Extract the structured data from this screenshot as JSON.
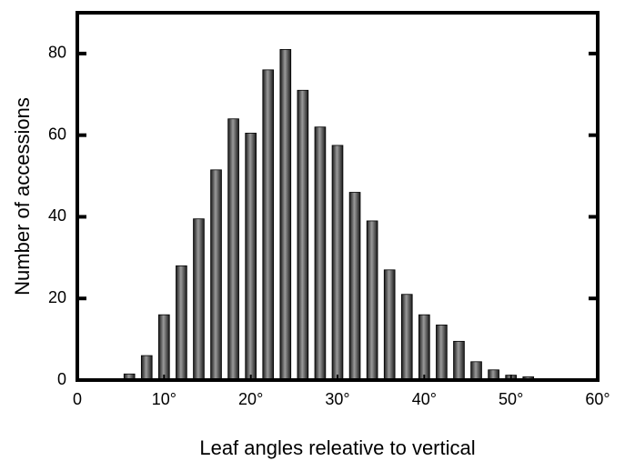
{
  "chart_data": {
    "type": "bar",
    "x": [
      6,
      8,
      10,
      12,
      14,
      16,
      18,
      20,
      22,
      24,
      26,
      28,
      30,
      32,
      34,
      36,
      38,
      40,
      42,
      44,
      46,
      48,
      50,
      52
    ],
    "values": [
      1.5,
      6,
      16,
      28,
      39.5,
      51.5,
      64,
      60.5,
      76,
      81,
      71,
      62,
      57.5,
      46,
      39,
      27,
      21,
      16,
      13.5,
      9.5,
      4.5,
      2.5,
      1.2,
      0.8
    ],
    "color": "#9a9a9a",
    "xlabel": "Leaf angles releative to vertical",
    "ylabel": "Number of accessions",
    "xlim": [
      0,
      60
    ],
    "xticks": [
      0,
      {
        "value": 10,
        "label": "10°"
      },
      {
        "value": 20,
        "label": "20°"
      },
      {
        "value": 30,
        "label": "30°"
      },
      {
        "value": 40,
        "label": "40°"
      },
      {
        "value": 50,
        "label": "50°"
      },
      {
        "value": 60,
        "label": "60°"
      }
    ],
    "ylim": [
      0,
      90
    ],
    "yticks": [
      0,
      20,
      40,
      60,
      80
    ]
  }
}
